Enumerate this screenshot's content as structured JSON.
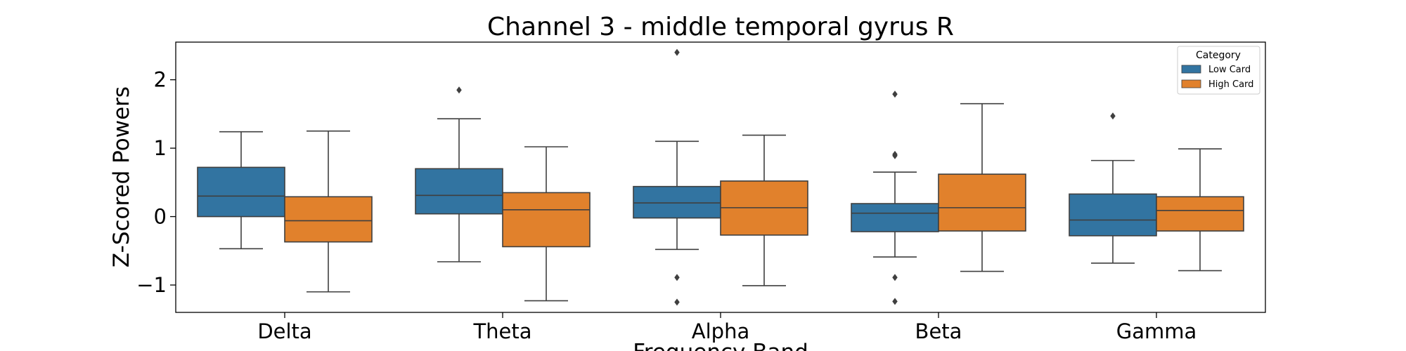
{
  "chart_data": {
    "type": "box",
    "title": "Channel 3 - middle temporal gyrus R",
    "xlabel": "Frequency Band",
    "ylabel": "Z-Scored Powers",
    "ylim": [
      -1.4,
      2.55
    ],
    "yticks": [
      -1,
      0,
      1,
      2
    ],
    "ytick_labels": [
      "−1",
      "0",
      "1",
      "2"
    ],
    "categories": [
      "Delta",
      "Theta",
      "Alpha",
      "Beta",
      "Gamma"
    ],
    "legend": {
      "title": "Category",
      "position": "top-right"
    },
    "series": [
      {
        "name": "Low Card",
        "color": "#3274a1",
        "boxes": [
          {
            "whisker_low": -0.47,
            "q1": 0.0,
            "median": 0.3,
            "q3": 0.72,
            "whisker_high": 1.24,
            "outliers": []
          },
          {
            "whisker_low": -0.66,
            "q1": 0.04,
            "median": 0.31,
            "q3": 0.7,
            "whisker_high": 1.43,
            "outliers": [
              1.85
            ]
          },
          {
            "whisker_low": -0.48,
            "q1": -0.02,
            "median": 0.2,
            "q3": 0.44,
            "whisker_high": 1.1,
            "outliers": [
              2.4,
              -0.89,
              -1.25
            ]
          },
          {
            "whisker_low": -0.59,
            "q1": -0.22,
            "median": 0.05,
            "q3": 0.19,
            "whisker_high": 0.65,
            "outliers": [
              1.79,
              0.91,
              0.89,
              -0.89,
              -1.24
            ]
          },
          {
            "whisker_low": -0.68,
            "q1": -0.28,
            "median": -0.05,
            "q3": 0.33,
            "whisker_high": 0.82,
            "outliers": [
              1.47
            ]
          }
        ]
      },
      {
        "name": "High Card",
        "color": "#e1812c",
        "boxes": [
          {
            "whisker_low": -1.1,
            "q1": -0.37,
            "median": -0.06,
            "q3": 0.29,
            "whisker_high": 1.25,
            "outliers": []
          },
          {
            "whisker_low": -1.23,
            "q1": -0.44,
            "median": 0.1,
            "q3": 0.35,
            "whisker_high": 1.02,
            "outliers": []
          },
          {
            "whisker_low": -1.01,
            "q1": -0.27,
            "median": 0.13,
            "q3": 0.52,
            "whisker_high": 1.19,
            "outliers": []
          },
          {
            "whisker_low": -0.8,
            "q1": -0.21,
            "median": 0.13,
            "q3": 0.62,
            "whisker_high": 1.65,
            "outliers": []
          },
          {
            "whisker_low": -0.79,
            "q1": -0.21,
            "median": 0.09,
            "q3": 0.29,
            "whisker_high": 0.99,
            "outliers": []
          }
        ]
      }
    ],
    "grid": false
  }
}
